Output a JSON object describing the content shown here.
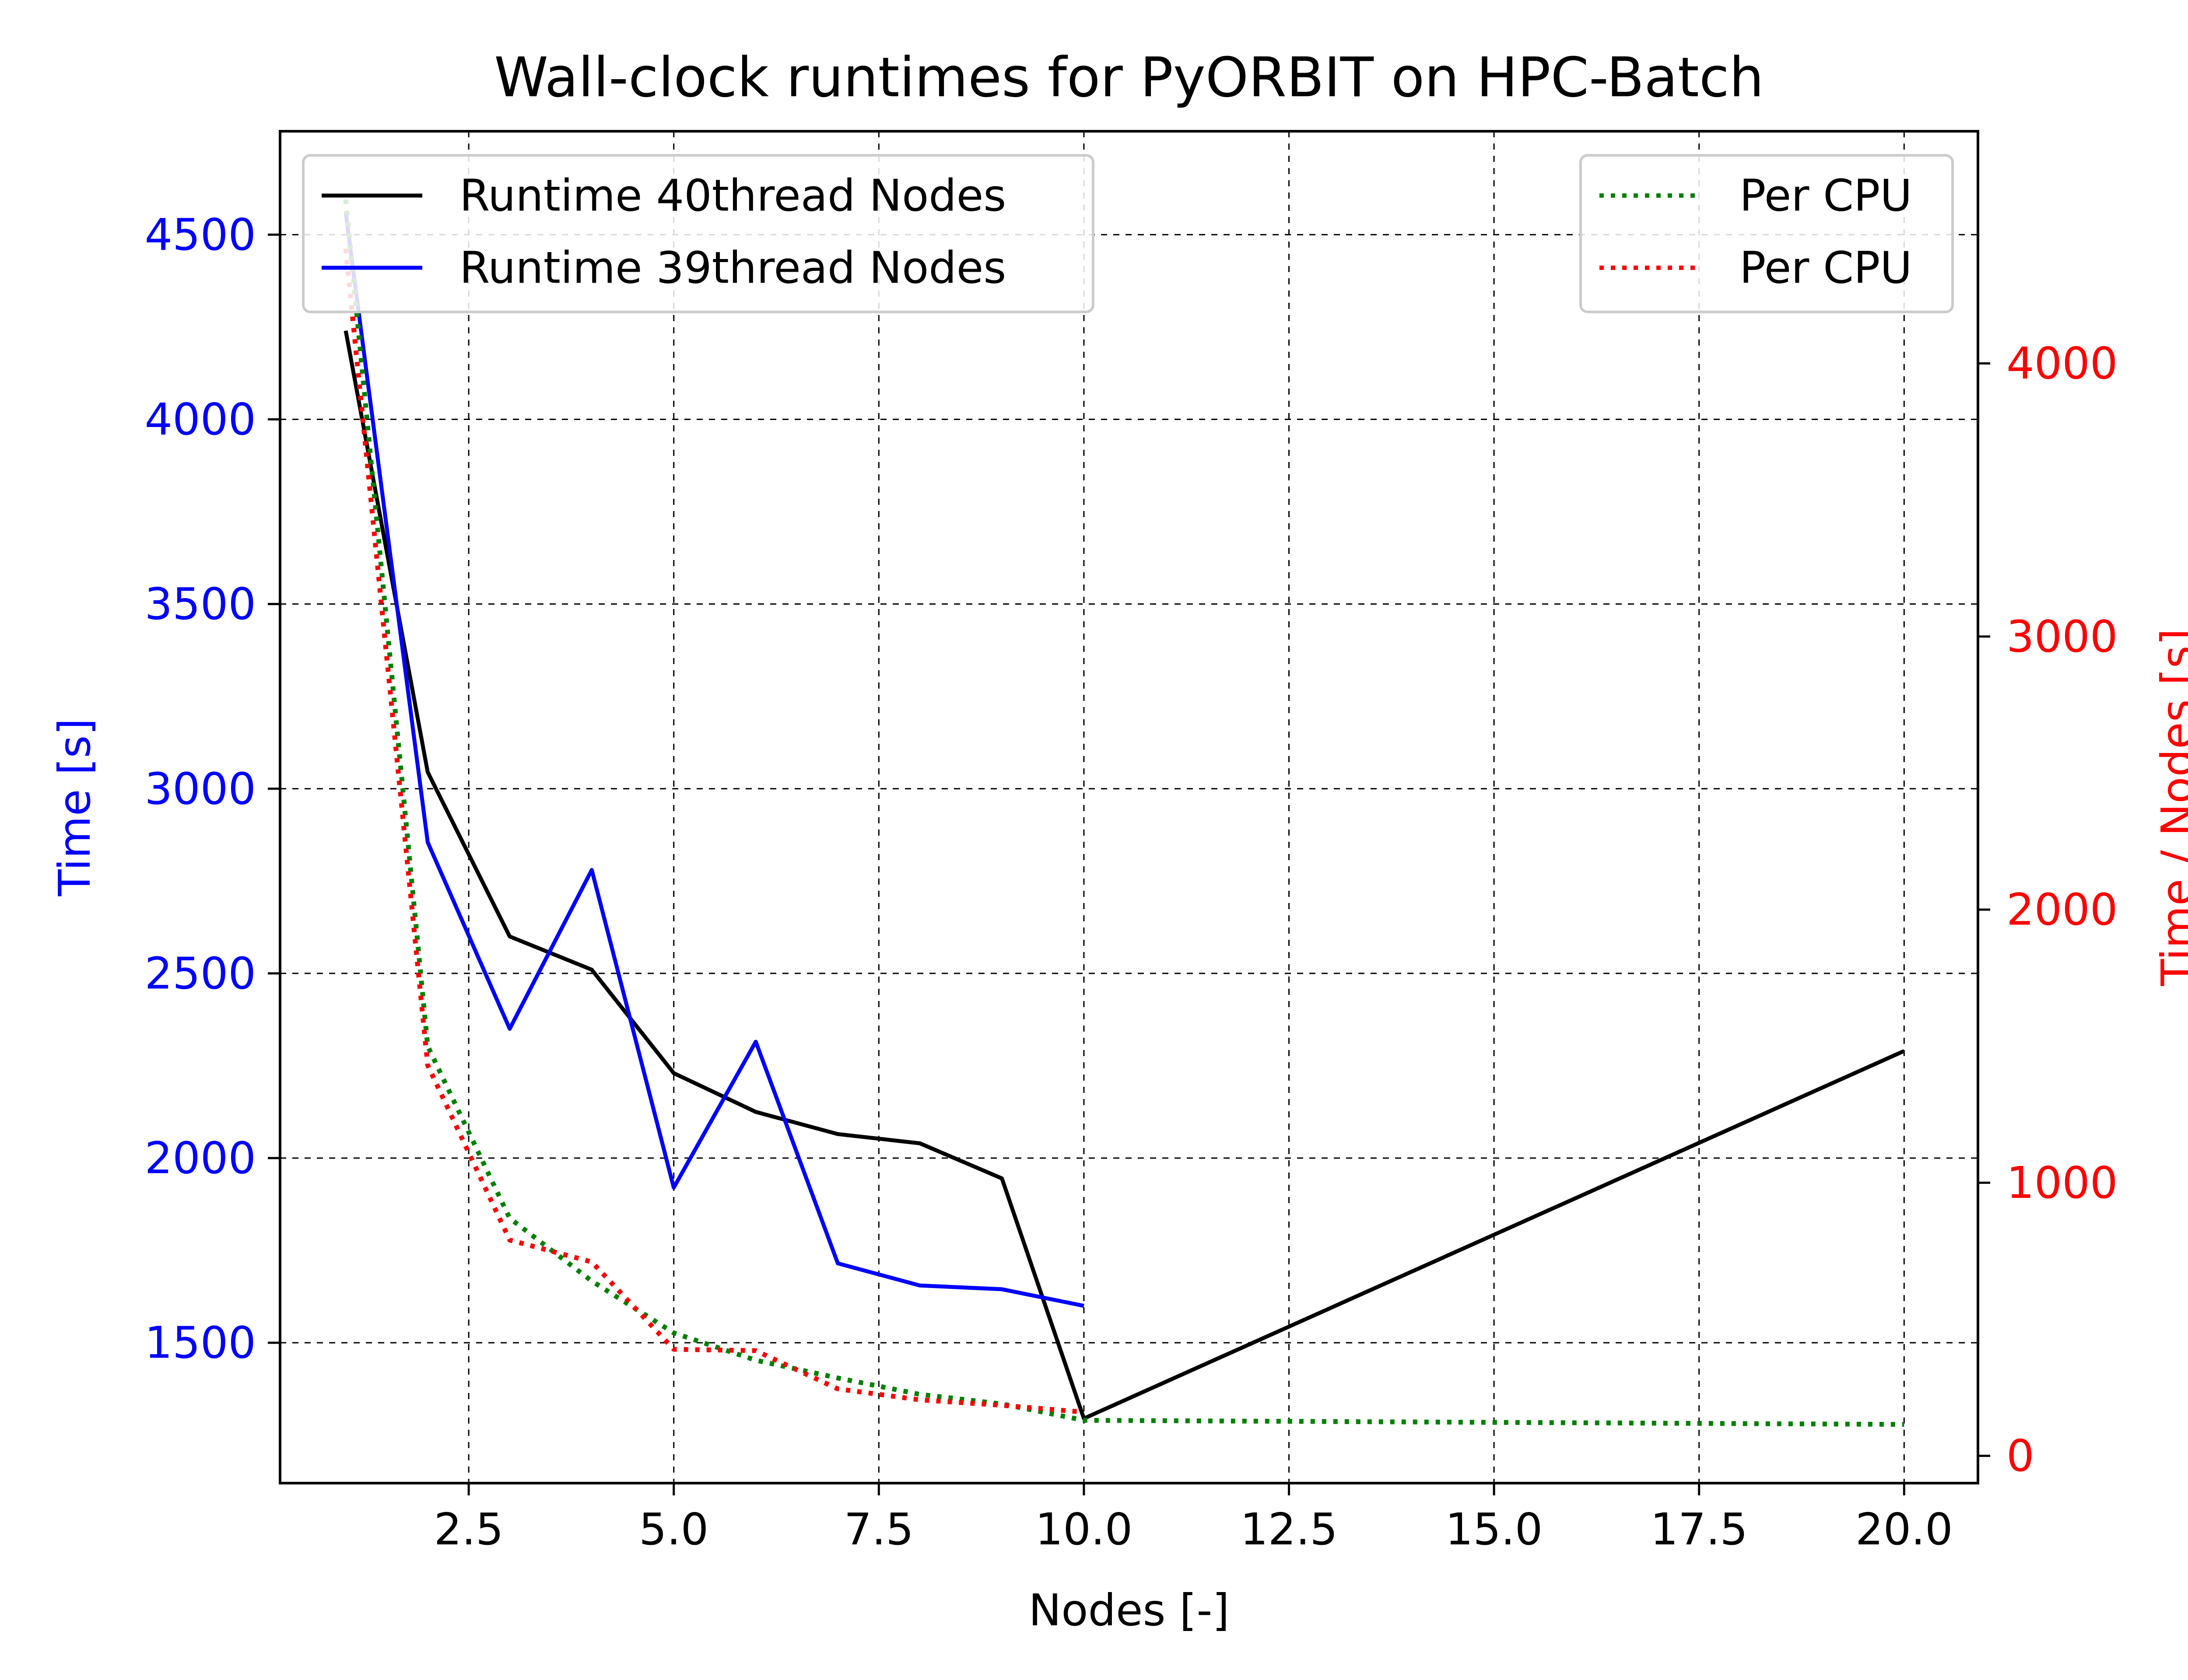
{
  "chart_data": {
    "type": "line",
    "title": "Wall-clock runtimes for PyORBIT on HPC-Batch",
    "xlabel": "Nodes [-]",
    "ylabel": "Time [s]",
    "y2label": "Time / Nodes [s]",
    "xlim": [
      0.2,
      20.9
    ],
    "ylim": [
      1120,
      4780
    ],
    "y2lim": [
      -100,
      4850
    ],
    "x_ticks": [
      2.5,
      5.0,
      7.5,
      10.0,
      12.5,
      15.0,
      17.5,
      20.0
    ],
    "x_tick_labels": [
      "2.5",
      "5.0",
      "7.5",
      "10.0",
      "12.5",
      "15.0",
      "17.5",
      "20.0"
    ],
    "y_ticks": [
      1500,
      2000,
      2500,
      3000,
      3500,
      4000,
      4500
    ],
    "y_tick_labels": [
      "1500",
      "2000",
      "2500",
      "3000",
      "3500",
      "4000",
      "4500"
    ],
    "y2_ticks": [
      0,
      1000,
      2000,
      3000,
      4000
    ],
    "y2_tick_labels": [
      "0",
      "1000",
      "2000",
      "3000",
      "4000"
    ],
    "grid": true,
    "colors": {
      "left_axis": "#0000ff",
      "right_axis": "#ff0000",
      "runtime_40": "#000000",
      "runtime_39": "#0000ff",
      "per_cpu_40": "#008000",
      "per_cpu_39": "#ff0000"
    },
    "legend_left": {
      "position": "top-left",
      "entries": [
        "Runtime 40thread Nodes",
        "Runtime 39thread Nodes"
      ]
    },
    "legend_right": {
      "position": "top-right",
      "entries": [
        "Per CPU",
        "Per CPU"
      ]
    },
    "series": [
      {
        "name": "Runtime 40thread Nodes",
        "axis": "left",
        "style": "solid",
        "color": "#000000",
        "x": [
          1,
          2,
          3,
          4,
          5,
          6,
          7,
          8,
          9,
          10,
          20
        ],
        "y": [
          4240,
          3045,
          2600,
          2510,
          2230,
          2125,
          2065,
          2040,
          1945,
          1295,
          2290
        ]
      },
      {
        "name": "Runtime 39thread Nodes",
        "axis": "left",
        "style": "solid",
        "color": "#0000ff",
        "x": [
          1,
          2,
          3,
          4,
          5,
          6,
          7,
          8,
          9,
          10
        ],
        "y": [
          4560,
          2855,
          2350,
          2780,
          1920,
          2315,
          1715,
          1655,
          1645,
          1600
        ]
      },
      {
        "name": "Per CPU",
        "axis": "right",
        "style": "dotted",
        "color": "#008000",
        "x": [
          1,
          2,
          3,
          4,
          5,
          6,
          7,
          8,
          9,
          10,
          20
        ],
        "y": [
          4600,
          1500,
          870,
          640,
          450,
          350,
          285,
          225,
          190,
          130,
          115
        ]
      },
      {
        "name": "Per CPU",
        "axis": "right",
        "style": "dotted",
        "color": "#ff0000",
        "x": [
          1,
          2,
          3,
          4,
          5,
          6,
          7,
          8,
          9,
          10
        ],
        "y": [
          4420,
          1430,
          790,
          710,
          390,
          385,
          245,
          205,
          185,
          160
        ]
      }
    ]
  }
}
